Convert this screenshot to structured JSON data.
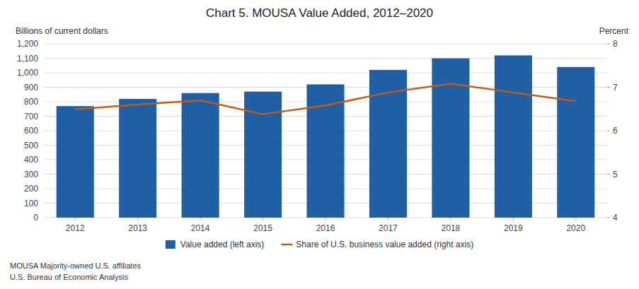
{
  "chart_data": {
    "type": "bar",
    "title": "Chart 5. MOUSA Value Added, 2012–2020",
    "ylabel": "Billions of current dollars",
    "y2label": "Percent",
    "categories": [
      "2012",
      "2013",
      "2014",
      "2015",
      "2016",
      "2017",
      "2018",
      "2019",
      "2020"
    ],
    "series": [
      {
        "name": "Value added (left axis)",
        "type": "bar",
        "color": "#1f5fa6",
        "values": [
          770,
          820,
          860,
          870,
          920,
          1020,
          1100,
          1120,
          1040
        ]
      },
      {
        "name": "Share of U.S. business value added (right axis)",
        "type": "line",
        "color": "#c55a11",
        "axis": "y2",
        "values": [
          6.49,
          6.6,
          6.7,
          6.38,
          6.58,
          6.88,
          7.08,
          6.88,
          6.68
        ]
      }
    ],
    "ylim": [
      0,
      1200
    ],
    "yticks": [
      0,
      100,
      200,
      300,
      400,
      500,
      600,
      700,
      800,
      900,
      {
        "value": 1000,
        "label": "1,000"
      },
      {
        "value": 1100,
        "label": "1,100"
      },
      {
        "value": 1200,
        "label": "1,200"
      }
    ],
    "y2lim": [
      4,
      8
    ],
    "y2ticks": [
      4,
      5,
      6,
      7,
      8
    ],
    "grid": true,
    "legend": "bottom",
    "annotations": [
      "MOUSA  Majority-owned U.S. affiliates",
      "U.S. Bureau of Economic Analysis"
    ]
  }
}
